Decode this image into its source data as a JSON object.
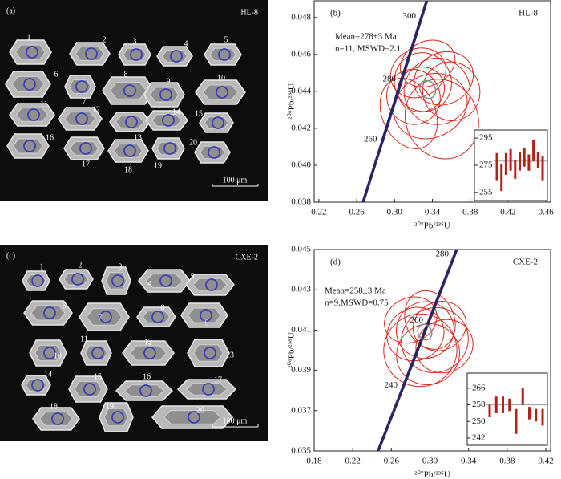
{
  "panels": [
    {
      "label": "(a)",
      "sample": "HL-8",
      "grains": [
        "1",
        "2",
        "3",
        "4",
        "5",
        "6",
        "7",
        "8",
        "9",
        "10",
        "11",
        "12",
        "13",
        "14",
        "15",
        "16",
        "17",
        "18",
        "19",
        "20"
      ],
      "scale_bar": "100 μm"
    },
    {
      "label": "(c)",
      "sample": "CXE-2",
      "grains": [
        "1",
        "2",
        "3",
        "4",
        "5",
        "6",
        "7",
        "8",
        "9",
        "10",
        "11",
        "12",
        "13",
        "14",
        "15",
        "16",
        "17",
        "18",
        "19",
        "20"
      ],
      "scale_bar": "100 μm"
    }
  ],
  "chart_data": [
    {
      "type": "concordia",
      "label": "(b)",
      "sample": "HL-8",
      "annotation": "Mean=278±3 Ma",
      "stats": "n=11, MSWD=2.1",
      "xlabel": "²⁰⁷Pb/²³⁵U",
      "ylabel": "²⁰⁶Pb/²³⁸U",
      "xlim": [
        0.215,
        0.465
      ],
      "xticks": [
        0.22,
        0.26,
        {
          "value": 0.3,
          "label": "0.30"
        },
        0.34,
        0.38,
        0.42,
        0.46
      ],
      "ylim": [
        0.038,
        0.0489
      ],
      "yticks": [
        0.038,
        {
          "value": 0.04,
          "label": "0.040"
        },
        0.042,
        0.044,
        0.046,
        0.048
      ],
      "concordia": {
        "color": "#2b2566",
        "ages": [
          "260",
          "280",
          "300"
        ],
        "x": [
          0.2866,
          0.3065,
          0.3277
        ],
        "y": [
          0.04122,
          0.04448,
          0.04787
        ]
      },
      "series": [
        {
          "color": "#d42a1e",
          "x": [
            0.33,
            0.345,
            0.32,
            0.352,
            0.338,
            0.325,
            0.36,
            0.315,
            0.335,
            0.35,
            0.328
          ],
          "y": [
            0.0445,
            0.044,
            0.0437,
            0.0447,
            0.0432,
            0.045,
            0.044,
            0.0428,
            0.0455,
            0.0425,
            0.0441
          ],
          "x_err": [
            0.03,
            0.035,
            0.028,
            0.032,
            0.04,
            0.03,
            0.03,
            0.028,
            0.03,
            0.038,
            0.025
          ],
          "y_err": [
            0.0016,
            0.0018,
            0.0015,
            0.0014,
            0.0017,
            0.0013,
            0.0016,
            0.002,
            0.0012,
            0.0022,
            0.0012
          ]
        }
      ],
      "mean_ellipse": {
        "color": "#888888",
        "x": 0.335,
        "y": 0.0441,
        "x_err": 0.008,
        "y_err": 0.0005
      },
      "inset": {
        "color": "#b0231a",
        "ylim": [
          249,
          301
        ],
        "yticks": [
          295,
          275,
          255
        ],
        "values": [
          274,
          266,
          276,
          279,
          272,
          278,
          281,
          277,
          286,
          279,
          273
        ],
        "errors": [
          10,
          10,
          8,
          8,
          7,
          7,
          7,
          6,
          8,
          6,
          9
        ],
        "mean": 278
      }
    },
    {
      "type": "concordia",
      "label": "(d)",
      "sample": "CXE-2",
      "annotation": "Mean=258±3 Ma",
      "stats": "n=9,MSWD=0.75",
      "xlabel": "²⁰⁷Pb/²³⁵U",
      "ylabel": "²⁰⁶Pb/²³⁸U",
      "xlim": [
        0.18,
        0.425
      ],
      "xticks": [
        0.18,
        0.22,
        0.26,
        {
          "value": 0.3,
          "label": "0.30"
        },
        0.34,
        0.38,
        0.42
      ],
      "ylim": [
        0.035,
        0.045
      ],
      "yticks": [
        0.035,
        0.037,
        0.039,
        0.041,
        0.043,
        0.045
      ],
      "concordia": {
        "color": "#2b2566",
        "ages": [
          "240",
          "260",
          "280"
        ],
        "x": [
          0.2714,
          0.2979,
          0.3245
        ],
        "y": [
          0.03808,
          0.04132,
          0.0446
        ]
      },
      "series": [
        {
          "color": "#d42a1e",
          "x": [
            0.295,
            0.305,
            0.285,
            0.31,
            0.29,
            0.3,
            0.315,
            0.28,
            0.298
          ],
          "y": [
            0.041,
            0.0405,
            0.0408,
            0.0412,
            0.04,
            0.0415,
            0.0402,
            0.0415,
            0.0398
          ],
          "x_err": [
            0.03,
            0.035,
            0.03,
            0.028,
            0.038,
            0.025,
            0.03,
            0.028,
            0.033
          ],
          "y_err": [
            0.0014,
            0.0016,
            0.0013,
            0.0012,
            0.0018,
            0.0015,
            0.0013,
            0.0011,
            0.0015
          ]
        }
      ],
      "mean_ellipse": {
        "color": "#888888",
        "x": 0.2946,
        "y": 0.0409,
        "x_err": 0.007,
        "y_err": 0.0004
      },
      "inset": {
        "color": "#b0231a",
        "ylim": [
          238.5,
          273.3
        ],
        "yticks": [
          266,
          258,
          250,
          242
        ],
        "values": [
          255,
          258,
          258,
          258,
          250,
          262,
          254,
          253,
          252
        ],
        "errors": [
          3,
          4,
          4,
          3,
          6,
          4,
          3,
          3,
          4
        ],
        "mean": 258
      }
    }
  ]
}
